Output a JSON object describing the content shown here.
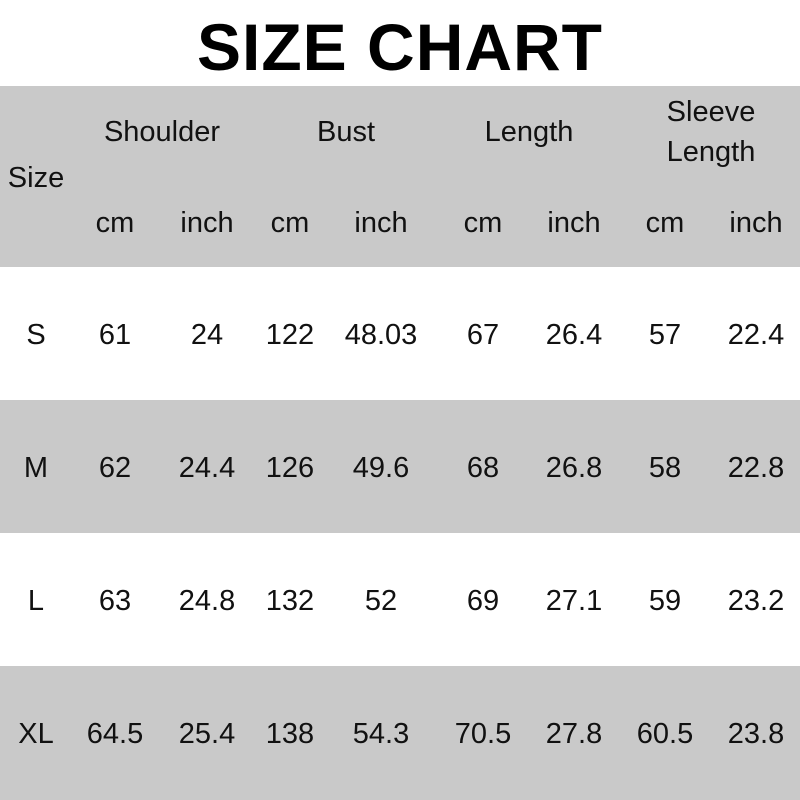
{
  "title": "SIZE CHART",
  "header": {
    "size": "Size",
    "groups": [
      "Shoulder",
      "Bust",
      "Length",
      "Sleeve Length"
    ],
    "sleeve_line1": "Sleeve",
    "sleeve_line2": "Length",
    "units": [
      "cm",
      "inch",
      "cm",
      "inch",
      "cm",
      "inch",
      "cm",
      "inch"
    ]
  },
  "rows": [
    {
      "size": "S",
      "values": [
        "61",
        "24",
        "122",
        "48.03",
        "67",
        "26.4",
        "57",
        "22.4"
      ]
    },
    {
      "size": "M",
      "values": [
        "62",
        "24.4",
        "126",
        "49.6",
        "68",
        "26.8",
        "58",
        "22.8"
      ]
    },
    {
      "size": "L",
      "values": [
        "63",
        "24.8",
        "132",
        "52",
        "69",
        "27.1",
        "59",
        "23.2"
      ]
    },
    {
      "size": "XL",
      "values": [
        "64.5",
        "25.4",
        "138",
        "54.3",
        "70.5",
        "27.8",
        "60.5",
        "23.8"
      ]
    }
  ],
  "colors": {
    "header_bg": "#c9c9c9",
    "alt_row_bg": "#c9c9c9",
    "text": "#111111"
  }
}
